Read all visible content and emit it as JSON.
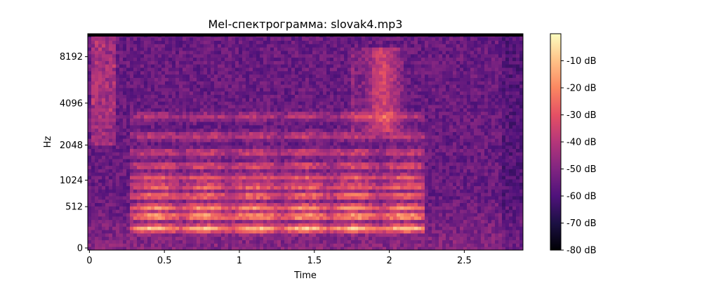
{
  "chart_data": {
    "type": "heatmap",
    "title": "Mel-спектрограмма: slovak4.mp3",
    "xlabel": "Time",
    "ylabel": "Hz",
    "xlim": [
      0,
      2.9
    ],
    "x_ticks": [
      0,
      0.5,
      1,
      1.5,
      2,
      2.5
    ],
    "x_tick_labels": [
      "0",
      "0.5",
      "1",
      "1.5",
      "2",
      "2.5"
    ],
    "y_scale": "mel",
    "y_ticks": [
      0,
      512,
      1024,
      2048,
      4096,
      8192
    ],
    "y_tick_labels": [
      "0",
      "512",
      "1024",
      "2048",
      "4096",
      "8192"
    ],
    "colorbar": {
      "colormap": "magma",
      "range": [
        -80,
        0
      ],
      "ticks": [
        -10,
        -20,
        -30,
        -40,
        -50,
        -60,
        -70,
        -80
      ],
      "tick_labels": [
        "-10 dB",
        "-20 dB",
        "-30 dB",
        "-40 dB",
        "-50 dB",
        "-60 dB",
        "-70 dB",
        "-80 dB"
      ]
    },
    "speech_bursts": [
      {
        "t_start": 0.28,
        "t_end": 2.25,
        "peak_db": -3
      },
      {
        "t_start": 0.03,
        "t_end": 0.18,
        "peak_db": -30
      },
      {
        "t_start": 1.75,
        "t_end": 2.1,
        "peak_db": -25
      }
    ],
    "formant_bands_hz": [
      230,
      390,
      520,
      720,
      900,
      1100,
      1400,
      1800,
      2400,
      3300
    ],
    "background_db": -55
  }
}
